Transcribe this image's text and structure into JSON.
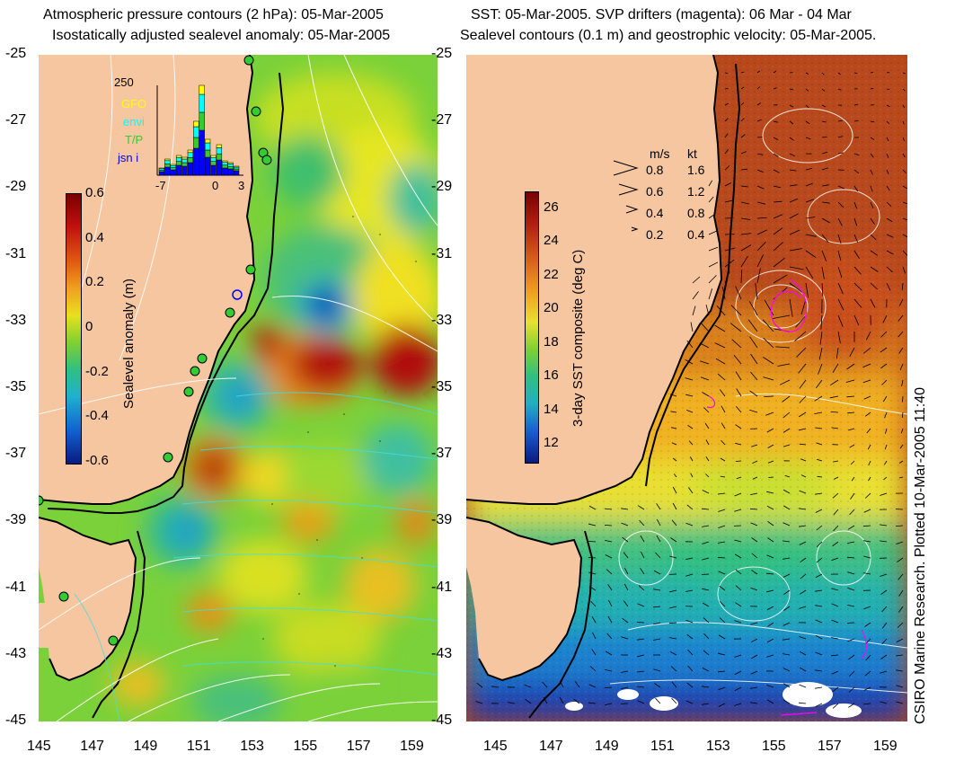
{
  "left_panel": {
    "title_line1": "Atmospheric pressure contours (2 hPa): 05-Mar-2005",
    "title_line2": "Isostatically adjusted sealevel anomaly: 05-Mar-2005",
    "colorbar": {
      "label": "Sealevel anomaly (m)",
      "ticks": [
        "0.6",
        "0.4",
        "0.2",
        "0",
        "-0.2",
        "-0.4",
        "-0.6"
      ],
      "range": [
        -0.6,
        0.6
      ]
    },
    "inset": {
      "max_label": "250",
      "legend": [
        {
          "label": "GFO",
          "color": "#ffff00"
        },
        {
          "label": "envi",
          "color": "#00ffff"
        },
        {
          "label": "T/P",
          "color": "#33cc33"
        },
        {
          "label": "jsn i",
          "color": "#0000ff"
        }
      ],
      "x_ticks": [
        "-7",
        "0",
        "3"
      ],
      "bars": [
        0.08,
        0.18,
        0.12,
        0.22,
        0.2,
        0.28,
        0.6,
        1.0,
        0.4,
        0.22,
        0.34,
        0.16,
        0.14,
        0.1
      ]
    }
  },
  "right_panel": {
    "title_line1": "SST: 05-Mar-2005. SVP drifters (magenta): 06 Mar - 04 Mar",
    "title_line2": "Sealevel contours (0.1 m) and geostrophic velocity: 05-Mar-2005.",
    "colorbar": {
      "label": "3-day SST composite (deg C)",
      "ticks": [
        "26",
        "24",
        "22",
        "20",
        "18",
        "16",
        "14",
        "12"
      ],
      "range": [
        11,
        27
      ]
    },
    "velocity_legend": {
      "header_ms": "m/s",
      "header_kt": "kt",
      "rows": [
        {
          "ms": "0.8",
          "kt": "1.6"
        },
        {
          "ms": "0.6",
          "kt": "1.2"
        },
        {
          "ms": "0.4",
          "kt": "0.8"
        },
        {
          "ms": "0.2",
          "kt": "0.4"
        }
      ]
    },
    "credit": "CSIRO Marine Research. Plotted 10-Mar-2005 11:40"
  },
  "axes": {
    "x_ticks": [
      "145",
      "147",
      "149",
      "151",
      "153",
      "155",
      "157",
      "159"
    ],
    "y_ticks": [
      "-25",
      "-27",
      "-29",
      "-31",
      "-33",
      "-35",
      "-37",
      "-39",
      "-41",
      "-43",
      "-45"
    ],
    "lon_range": [
      145,
      160
    ],
    "lat_range": [
      -45,
      -25
    ]
  },
  "colors": {
    "land": "#f5c6a0",
    "coast": "#000000",
    "pressure_contour": "#ffffff",
    "drifter": "#ff00ff",
    "station": "#33cc33"
  }
}
